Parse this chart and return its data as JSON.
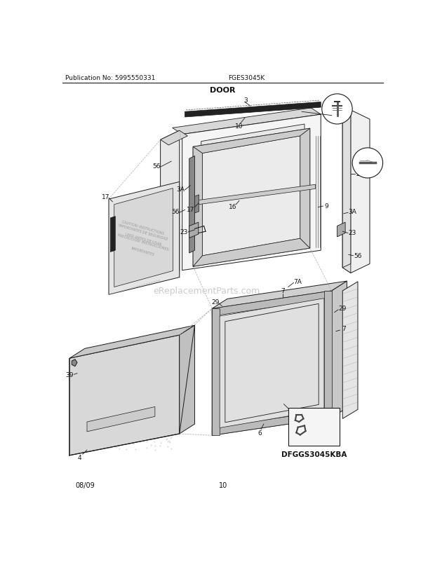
{
  "title": "DOOR",
  "pub_no": "Publication No: 5995550331",
  "model": "FGES3045K",
  "date": "08/09",
  "page": "10",
  "diagram_label": "DFGGS3045KBA",
  "watermark": "eReplacementParts.com",
  "bg_color": "#ffffff",
  "line_color": "#1a1a1a",
  "fig_size": [
    6.2,
    8.03
  ],
  "dpi": 100
}
